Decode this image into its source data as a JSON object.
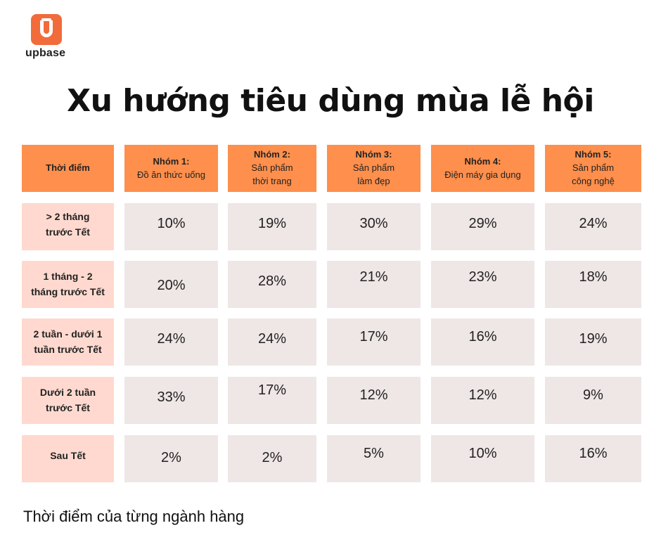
{
  "brand": {
    "name": "upbase",
    "color": "#f26b3a"
  },
  "title": "Xu hướng tiêu dùng mùa lễ hội",
  "caption": "Thời điểm của từng ngành hàng",
  "colors": {
    "header": "#fe8f4c",
    "row_label": "#ffd9cf",
    "value_cell": "#efe6e6"
  },
  "chart_data": {
    "type": "table",
    "corner_label": "Thời điểm",
    "columns": [
      {
        "group": "Nhóm 1:",
        "name_lines": [
          "Đồ ăn thức uống"
        ]
      },
      {
        "group": "Nhóm 2:",
        "name_lines": [
          "Sản phẩm",
          "thời trang"
        ]
      },
      {
        "group": "Nhóm 3:",
        "name_lines": [
          "Sản phẩm",
          "làm đẹp"
        ]
      },
      {
        "group": "Nhóm 4:",
        "name_lines": [
          "Điện máy gia dụng"
        ]
      },
      {
        "group": "Nhóm 5:",
        "name_lines": [
          "Sản phẩm",
          "công nghệ"
        ]
      }
    ],
    "rows": [
      {
        "label_lines": [
          ">  2 tháng",
          "trước Tết"
        ],
        "values": [
          "10%",
          "19%",
          "30%",
          "29%",
          "24%"
        ]
      },
      {
        "label_lines": [
          "1 tháng - 2",
          "tháng trước Tết"
        ],
        "values": [
          "20%",
          "28%",
          "21%",
          "23%",
          "18%"
        ]
      },
      {
        "label_lines": [
          "2 tuần - dưới 1",
          "tuần trước Tết"
        ],
        "values": [
          "24%",
          "24%",
          "17%",
          "16%",
          "19%"
        ]
      },
      {
        "label_lines": [
          "Dưới 2 tuần",
          "trước Tết"
        ],
        "values": [
          "33%",
          "17%",
          "12%",
          "12%",
          "9%"
        ]
      },
      {
        "label_lines": [
          "Sau Tết"
        ],
        "values": [
          "2%",
          "2%",
          "5%",
          "10%",
          "16%"
        ]
      }
    ]
  }
}
